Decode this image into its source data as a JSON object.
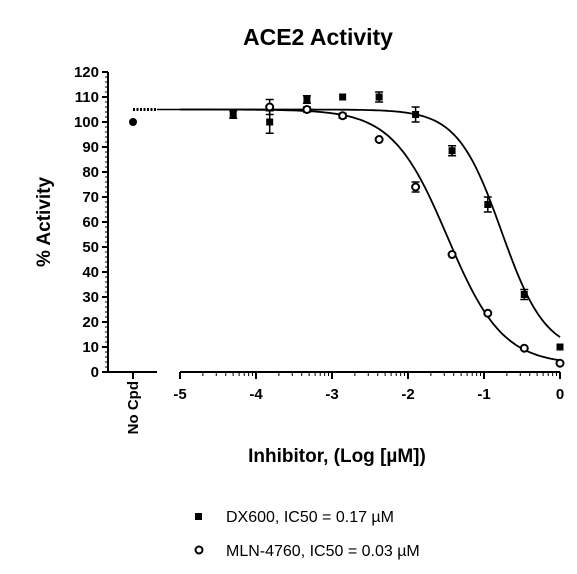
{
  "chart_data": {
    "type": "scatter",
    "title": "ACE2 Activity",
    "xlabel": "Inhibitor, (Log [µM])",
    "ylabel": "% Activity",
    "xlim": [
      -5,
      0
    ],
    "ylim": [
      0,
      120
    ],
    "x_ticks": [
      -5,
      -4,
      -3,
      -2,
      -1,
      0
    ],
    "x_tick_labels": [
      "-5",
      "-4",
      "-3",
      "-2",
      "-1",
      "0"
    ],
    "y_ticks": [
      0,
      10,
      20,
      30,
      40,
      50,
      60,
      70,
      80,
      90,
      100,
      110,
      120
    ],
    "y_tick_labels": [
      "0",
      "10",
      "20",
      "30",
      "40",
      "50",
      "60",
      "70",
      "80",
      "90",
      "100",
      "110",
      "120"
    ],
    "control_label": "No Cpd",
    "control_value": 100,
    "control_fit_value": 105,
    "legend_position": "bottom",
    "grid": false,
    "series": [
      {
        "name": "DX600, IC50 = 0.17 µM",
        "marker": "square",
        "x": [
          -4.3,
          -3.82,
          -3.33,
          -2.86,
          -2.38,
          -1.9,
          -1.42,
          -0.95,
          -0.47,
          0
        ],
        "y": [
          103,
          100,
          109,
          110,
          110,
          103,
          88.5,
          67,
          31,
          10
        ],
        "err": [
          1.5,
          4.5,
          1.5,
          0.5,
          2,
          3,
          2,
          3,
          2,
          0.5
        ],
        "fit": {
          "top": 105,
          "bottom": 7.6,
          "logIC50": -0.77,
          "hill": 1.5
        }
      },
      {
        "name": "MLN-4760, IC50 = 0.03 µM",
        "marker": "circle",
        "x": [
          -3.82,
          -3.33,
          -2.86,
          -2.38,
          -1.9,
          -1.42,
          -0.95,
          -0.47,
          0
        ],
        "y": [
          106,
          105,
          102.5,
          93,
          74,
          47,
          23.5,
          9.5,
          3.5
        ],
        "err": [
          3,
          1,
          1,
          0.5,
          2,
          0.5,
          0.5,
          0.5,
          0.5
        ],
        "fit": {
          "top": 105,
          "bottom": 3,
          "logIC50": -1.48,
          "hill": 1.2
        }
      }
    ]
  }
}
